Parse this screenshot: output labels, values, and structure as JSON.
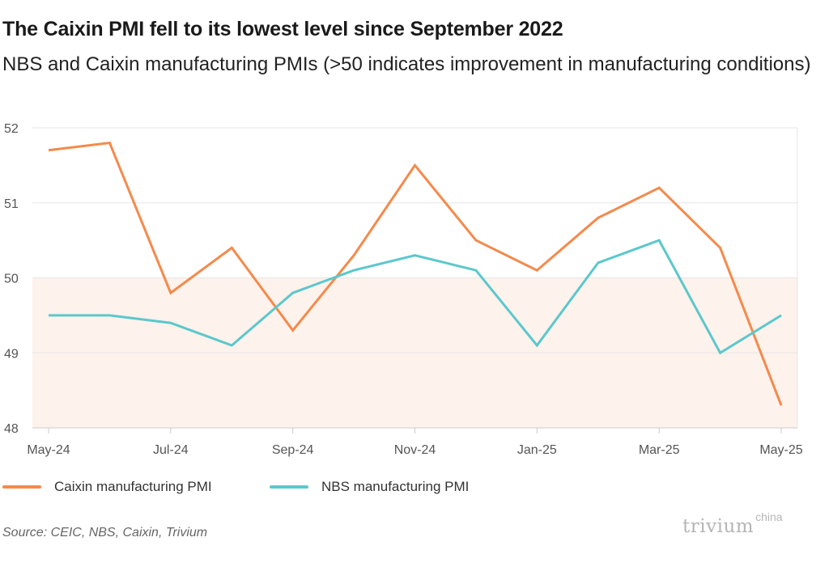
{
  "header": {
    "title": "The Caixin PMI fell to its lowest level since September 2022",
    "subtitle": "NBS and Caixin manufacturing PMIs (>50 indicates improvement in manufacturing conditions)"
  },
  "chart_data": {
    "type": "line",
    "categories": [
      "May-24",
      "Jun-24",
      "Jul-24",
      "Aug-24",
      "Sep-24",
      "Oct-24",
      "Nov-24",
      "Dec-24",
      "Jan-25",
      "Feb-25",
      "Mar-25",
      "Apr-25",
      "May-25"
    ],
    "x_tick_labels": [
      "May-24",
      "Jul-24",
      "Sep-24",
      "Nov-24",
      "Jan-25",
      "Mar-25",
      "May-25"
    ],
    "y_ticks": [
      "48",
      "49",
      "50",
      "51",
      "52"
    ],
    "ylim": [
      48,
      52
    ],
    "shaded_below": 50,
    "grid": true,
    "legend_position": "bottom-left",
    "series": [
      {
        "name": "Caixin manufacturing PMI",
        "color": "#f58a4b",
        "values": [
          51.7,
          51.8,
          49.8,
          50.4,
          49.3,
          50.3,
          51.5,
          50.5,
          50.1,
          50.8,
          51.2,
          50.4,
          48.3
        ]
      },
      {
        "name": "NBS manufacturing PMI",
        "color": "#5bc8cc",
        "values": [
          49.5,
          49.5,
          49.4,
          49.1,
          49.8,
          50.1,
          50.3,
          50.1,
          49.1,
          50.2,
          50.5,
          49.0,
          49.5
        ]
      }
    ]
  },
  "colors": {
    "contraction_shade": "#fdf2ec",
    "gridline": "#e6e6e6",
    "axis": "#cccccc"
  },
  "footer": {
    "source": "Source: CEIC, NBS, Caixin, Trivium",
    "logo_main": "trivium",
    "logo_sup": "china"
  }
}
